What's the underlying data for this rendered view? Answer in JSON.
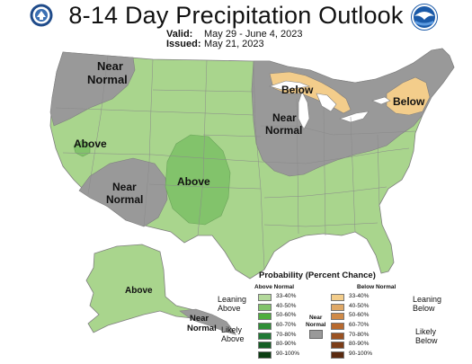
{
  "header": {
    "title": "8-14 Day Precipitation Outlook",
    "valid_label": "Valid:",
    "valid_value": "May 29 - June 4, 2023",
    "issued_label": "Issued:",
    "issued_value": "May 21, 2023"
  },
  "colors": {
    "above_light": "#a9d58d",
    "above_mid": "#82c36b",
    "near_normal": "#999999",
    "below_light": "#f3cd8b",
    "water": "#ffffff",
    "border": "#8a8a8a"
  },
  "map_labels": {
    "nw_near_normal_1": "Near",
    "nw_near_normal_2": "Normal",
    "sw_above": "Above",
    "sw_near_normal_1": "Near",
    "sw_near_normal_2": "Normal",
    "plains_above": "Above",
    "gl_below": "Below",
    "ne_below": "Below",
    "mw_near_normal_1": "Near",
    "mw_near_normal_2": "Normal",
    "ak_above": "Above",
    "ak_near_normal_1": "Near",
    "ak_near_normal_2": "Normal"
  },
  "legend": {
    "title": "Probability (Percent Chance)",
    "above_header": "Above Normal",
    "below_header": "Below Normal",
    "near_normal_1": "Near",
    "near_normal_2": "Normal",
    "leaning_above_1": "Leaning",
    "leaning_above_2": "Above",
    "likely_above_1": "Likely",
    "likely_above_2": "Above",
    "leaning_below_1": "Leaning",
    "leaning_below_2": "Below",
    "likely_below_1": "Likely",
    "likely_below_2": "Below",
    "above_bins": [
      {
        "label": "33-40%",
        "color": "#b3d99b"
      },
      {
        "label": "40-50%",
        "color": "#82c36b"
      },
      {
        "label": "50-60%",
        "color": "#4fae3e"
      },
      {
        "label": "60-70%",
        "color": "#2f8f36"
      },
      {
        "label": "70-80%",
        "color": "#207a34"
      },
      {
        "label": "80-90%",
        "color": "#155e25"
      },
      {
        "label": "90-100%",
        "color": "#0b3d12"
      }
    ],
    "below_bins": [
      {
        "label": "33-40%",
        "color": "#f3cd8b"
      },
      {
        "label": "40-50%",
        "color": "#dfa866"
      },
      {
        "label": "50-60%",
        "color": "#cf8a48"
      },
      {
        "label": "60-70%",
        "color": "#b86a2f"
      },
      {
        "label": "70-80%",
        "color": "#9b5222"
      },
      {
        "label": "80-90%",
        "color": "#7c3d18"
      },
      {
        "label": "90-100%",
        "color": "#5a2a10"
      }
    ]
  },
  "logos": {
    "left": "doc-seal-icon",
    "right": "noaa-logo-icon"
  }
}
